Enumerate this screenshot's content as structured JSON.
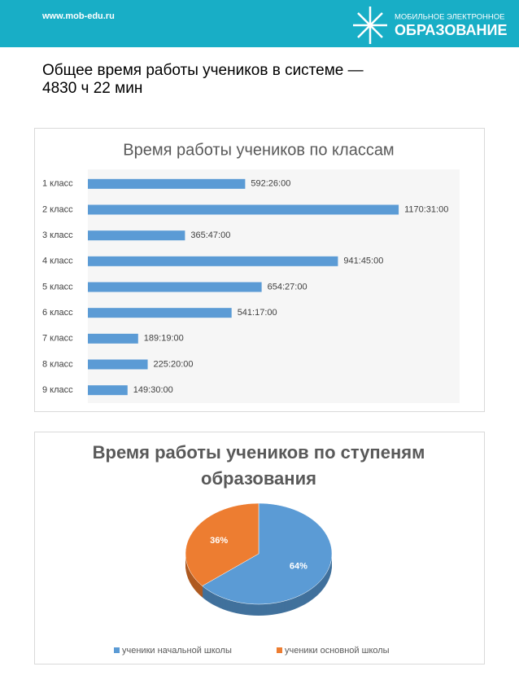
{
  "header": {
    "url": "www.mob-edu.ru",
    "logo_top": "МОБИЛЬНОЕ ЭЛЕКТРОННОЕ",
    "logo_bottom": "ОБРАЗОВАНИЕ"
  },
  "heading": [
    "Общее время работы учеников в системе —",
    "4830 ч 22 мин"
  ],
  "chart_data": [
    {
      "type": "bar",
      "orientation": "horizontal",
      "title": "Время работы учеников по классам",
      "categories": [
        "1 класс",
        "2 класс",
        "3 класс",
        "4 класс",
        "5 класс",
        "6 класс",
        "7 класс",
        "8 класс",
        "9 класс"
      ],
      "values": [
        592.43,
        1170.52,
        365.78,
        941.75,
        654.45,
        541.28,
        189.32,
        225.33,
        149.5
      ],
      "value_labels": [
        "592:26:00",
        "1170:31:00",
        "365:47:00",
        "941:45:00",
        "654:27:00",
        "541:17:00",
        "189:19:00",
        "225:20:00",
        "149:30:00"
      ],
      "color": "#5b9bd5",
      "xlim": [
        0,
        1400
      ]
    },
    {
      "type": "pie",
      "title": "Время работы учеников по ступеням образования",
      "categories": [
        "ученики начальной школы",
        "ученики основной школы"
      ],
      "values": [
        64,
        36
      ],
      "value_labels": [
        "64%",
        "36%"
      ],
      "colors": [
        "#5b9bd5",
        "#ed7d31"
      ],
      "legend": "bottom"
    }
  ]
}
